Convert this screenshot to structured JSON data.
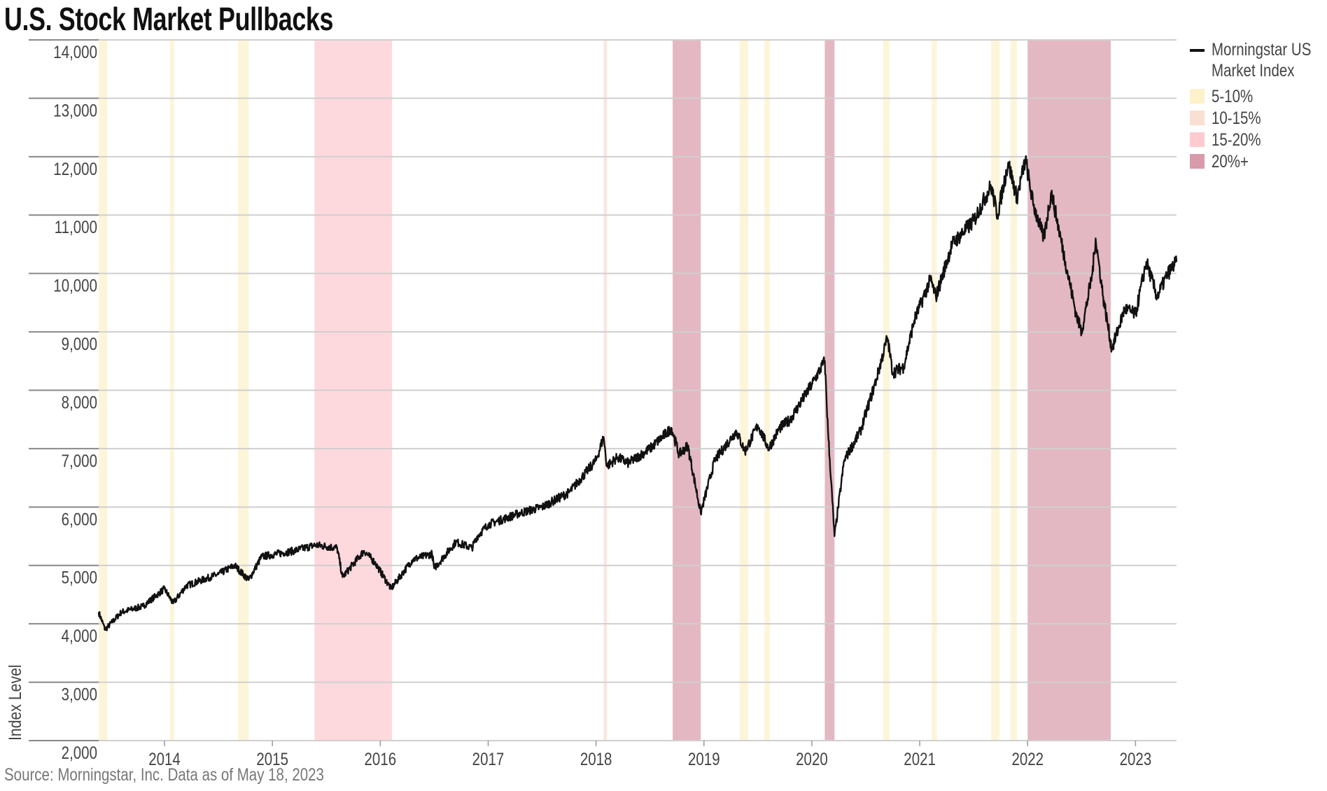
{
  "title": "U.S. Stock Market Pullbacks",
  "source": "Source: Morningstar, Inc. Data as of May 18, 2023",
  "chart_data": {
    "type": "line",
    "title": "U.S. Stock Market Pullbacks",
    "xlabel": "",
    "ylabel": "Index Level",
    "xlim": [
      2013.39,
      2023.38
    ],
    "ylim": [
      2000,
      14000
    ],
    "x_ticks": [
      "2014",
      "2015",
      "2016",
      "2017",
      "2018",
      "2019",
      "2020",
      "2021",
      "2022",
      "2023"
    ],
    "y_ticks": [
      "2,000",
      "3,000",
      "4,000",
      "5,000",
      "6,000",
      "7,000",
      "8,000",
      "9,000",
      "10,000",
      "11,000",
      "12,000",
      "13,000",
      "14,000"
    ],
    "grid": "horizontal",
    "legend_placement": "right",
    "series": [
      {
        "name": "Morningstar US Market Index",
        "color": "#111111",
        "points": [
          [
            2013.39,
            4200
          ],
          [
            2013.45,
            3900
          ],
          [
            2013.6,
            4200
          ],
          [
            2013.8,
            4300
          ],
          [
            2014.0,
            4600
          ],
          [
            2014.08,
            4350
          ],
          [
            2014.2,
            4650
          ],
          [
            2014.5,
            4850
          ],
          [
            2014.65,
            5000
          ],
          [
            2014.78,
            4750
          ],
          [
            2014.9,
            5150
          ],
          [
            2015.2,
            5250
          ],
          [
            2015.4,
            5350
          ],
          [
            2015.6,
            5300
          ],
          [
            2015.65,
            4800
          ],
          [
            2015.85,
            5250
          ],
          [
            2015.95,
            5050
          ],
          [
            2016.1,
            4600
          ],
          [
            2016.3,
            5100
          ],
          [
            2016.48,
            5200
          ],
          [
            2016.5,
            4950
          ],
          [
            2016.7,
            5400
          ],
          [
            2016.85,
            5300
          ],
          [
            2016.9,
            5500
          ],
          [
            2017.0,
            5700
          ],
          [
            2017.3,
            5900
          ],
          [
            2017.5,
            6000
          ],
          [
            2017.75,
            6250
          ],
          [
            2018.0,
            6800
          ],
          [
            2018.07,
            7200
          ],
          [
            2018.1,
            6700
          ],
          [
            2018.2,
            6850
          ],
          [
            2018.3,
            6750
          ],
          [
            2018.5,
            7000
          ],
          [
            2018.7,
            7350
          ],
          [
            2018.77,
            6900
          ],
          [
            2018.85,
            7050
          ],
          [
            2018.97,
            5900
          ],
          [
            2019.1,
            6800
          ],
          [
            2019.3,
            7300
          ],
          [
            2019.38,
            6950
          ],
          [
            2019.5,
            7400
          ],
          [
            2019.6,
            7000
          ],
          [
            2019.7,
            7350
          ],
          [
            2019.8,
            7500
          ],
          [
            2020.0,
            8100
          ],
          [
            2020.12,
            8500
          ],
          [
            2020.15,
            7300
          ],
          [
            2020.21,
            5500
          ],
          [
            2020.3,
            6800
          ],
          [
            2020.45,
            7300
          ],
          [
            2020.6,
            8200
          ],
          [
            2020.7,
            8900
          ],
          [
            2020.75,
            8300
          ],
          [
            2020.85,
            8400
          ],
          [
            2020.95,
            9200
          ],
          [
            2021.1,
            9900
          ],
          [
            2021.15,
            9600
          ],
          [
            2021.3,
            10500
          ],
          [
            2021.5,
            10900
          ],
          [
            2021.66,
            11500
          ],
          [
            2021.72,
            11000
          ],
          [
            2021.82,
            11900
          ],
          [
            2021.9,
            11300
          ],
          [
            2021.98,
            11950
          ],
          [
            2022.05,
            11200
          ],
          [
            2022.15,
            10600
          ],
          [
            2022.22,
            11400
          ],
          [
            2022.35,
            10200
          ],
          [
            2022.45,
            9300
          ],
          [
            2022.5,
            9000
          ],
          [
            2022.6,
            10000
          ],
          [
            2022.63,
            10600
          ],
          [
            2022.7,
            9600
          ],
          [
            2022.78,
            8700
          ],
          [
            2022.9,
            9400
          ],
          [
            2023.0,
            9300
          ],
          [
            2023.1,
            10200
          ],
          [
            2023.2,
            9600
          ],
          [
            2023.3,
            10000
          ],
          [
            2023.38,
            10200
          ]
        ]
      }
    ],
    "pullback_categories": [
      {
        "label": "5-10%",
        "color": "#fdf5d9",
        "legend_color": "#fcf1c8"
      },
      {
        "label": "10-15%",
        "color": "#f8e8e0",
        "legend_color": "#f9e0d2"
      },
      {
        "label": "15-20%",
        "color": "#fdd9de",
        "legend_color": "#fdcbd0"
      },
      {
        "label": "20%+",
        "color": "#e3b8c2",
        "legend_color": "#d99aaa"
      }
    ],
    "pullbacks": [
      {
        "category": "5-10%",
        "start": 2013.39,
        "end": 2013.47
      },
      {
        "category": "5-10%",
        "start": 2014.05,
        "end": 2014.09
      },
      {
        "category": "5-10%",
        "start": 2014.68,
        "end": 2014.78
      },
      {
        "category": "15-20%",
        "start": 2015.39,
        "end": 2016.11
      },
      {
        "category": "10-15%",
        "start": 2018.07,
        "end": 2018.1
      },
      {
        "category": "20%+",
        "start": 2018.71,
        "end": 2018.97
      },
      {
        "category": "5-10%",
        "start": 2019.33,
        "end": 2019.41
      },
      {
        "category": "5-10%",
        "start": 2019.56,
        "end": 2019.61
      },
      {
        "category": "20%+",
        "start": 2020.12,
        "end": 2020.21
      },
      {
        "category": "5-10%",
        "start": 2020.66,
        "end": 2020.72
      },
      {
        "category": "5-10%",
        "start": 2021.11,
        "end": 2021.16
      },
      {
        "category": "5-10%",
        "start": 2021.66,
        "end": 2021.74
      },
      {
        "category": "5-10%",
        "start": 2021.84,
        "end": 2021.9
      },
      {
        "category": "20%+",
        "start": 2022.0,
        "end": 2022.77
      }
    ]
  },
  "legend": {
    "series_label_line1": "Morningstar US",
    "series_label_line2": "Market Index",
    "items": [
      "5-10%",
      "10-15%",
      "15-20%",
      "20%+"
    ]
  }
}
